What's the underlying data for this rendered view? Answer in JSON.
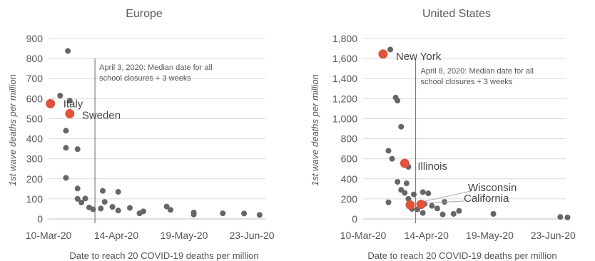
{
  "chart_data": [
    {
      "type": "scatter",
      "title": "Europe",
      "xlabel": "Date to reach 20 COVID-19 deaths per million",
      "ylabel": "1st wave deaths per million",
      "x_ticks": [
        "10-Mar-20",
        "14-Apr-20",
        "19-May-20",
        "23-Jun-20"
      ],
      "y_ticks": [
        "0",
        "100",
        "200",
        "300",
        "400",
        "500",
        "600",
        "700",
        "800",
        "900"
      ],
      "xlim": [
        "2020-03-10",
        "2020-06-30"
      ],
      "ylim": [
        0,
        900
      ],
      "grid": "horizontal",
      "reference_line": {
        "x": "2020-04-03",
        "text": [
          "April 3, 2020: Median date for all",
          "school closures + 3 weeks"
        ]
      },
      "series": [
        {
          "color": "#666666",
          "points": [
            {
              "x": "2020-03-16",
              "y": 615
            },
            {
              "x": "2020-03-20",
              "y": 838
            },
            {
              "x": "2020-03-21",
              "y": 590
            },
            {
              "x": "2020-03-19",
              "y": 440
            },
            {
              "x": "2020-03-19",
              "y": 355
            },
            {
              "x": "2020-03-25",
              "y": 348
            },
            {
              "x": "2020-03-19",
              "y": 205
            },
            {
              "x": "2020-03-25",
              "y": 152
            },
            {
              "x": "2020-03-25",
              "y": 100
            },
            {
              "x": "2020-03-27",
              "y": 82
            },
            {
              "x": "2020-03-29",
              "y": 102
            },
            {
              "x": "2020-03-31",
              "y": 57
            },
            {
              "x": "2020-04-02",
              "y": 48
            },
            {
              "x": "2020-04-06",
              "y": 52
            },
            {
              "x": "2020-04-07",
              "y": 140
            },
            {
              "x": "2020-04-08",
              "y": 85
            },
            {
              "x": "2020-04-12",
              "y": 60
            },
            {
              "x": "2020-04-15",
              "y": 135
            },
            {
              "x": "2020-04-15",
              "y": 42
            },
            {
              "x": "2020-04-21",
              "y": 55
            },
            {
              "x": "2020-04-26",
              "y": 28
            },
            {
              "x": "2020-04-28",
              "y": 38
            },
            {
              "x": "2020-05-10",
              "y": 62
            },
            {
              "x": "2020-05-12",
              "y": 45
            },
            {
              "x": "2020-05-24",
              "y": 32
            },
            {
              "x": "2020-05-24",
              "y": 22
            },
            {
              "x": "2020-06-08",
              "y": 28
            },
            {
              "x": "2020-06-19",
              "y": 27
            },
            {
              "x": "2020-06-27",
              "y": 20
            }
          ]
        },
        {
          "color": "#e0533a",
          "points": [
            {
              "x": "2020-03-11",
              "y": 575,
              "label": "Italy"
            },
            {
              "x": "2020-03-21",
              "y": 525,
              "label": "Sweden"
            }
          ]
        }
      ]
    },
    {
      "type": "scatter",
      "title": "United States",
      "xlabel": "Date to reach 20 COVID-19 deaths per million",
      "ylabel": "1st wave deaths per million",
      "x_ticks": [
        "10-Mar-20",
        "14-Apr-20",
        "19-May-20",
        "23-Jun-20"
      ],
      "y_ticks": [
        "0",
        "200",
        "400",
        "600",
        "800",
        "1,000",
        "1,200",
        "1,400",
        "1,600",
        "1,800"
      ],
      "xlim": [
        "2020-03-10",
        "2020-06-30"
      ],
      "ylim": [
        0,
        1800
      ],
      "grid": "horizontal",
      "reference_line": {
        "x": "2020-04-08",
        "text": [
          "April 8, 2020: Median date for all",
          "school closures + 3 weeks"
        ]
      },
      "series": [
        {
          "color": "#666666",
          "points": [
            {
              "x": "2020-03-25",
              "y": 1690
            },
            {
              "x": "2020-03-28",
              "y": 1210
            },
            {
              "x": "2020-03-29",
              "y": 1180
            },
            {
              "x": "2020-03-31",
              "y": 920
            },
            {
              "x": "2020-03-24",
              "y": 680
            },
            {
              "x": "2020-03-26",
              "y": 600
            },
            {
              "x": "2020-04-04",
              "y": 520
            },
            {
              "x": "2020-03-29",
              "y": 370
            },
            {
              "x": "2020-04-03",
              "y": 355
            },
            {
              "x": "2020-03-31",
              "y": 290
            },
            {
              "x": "2020-04-02",
              "y": 260
            },
            {
              "x": "2020-04-07",
              "y": 245
            },
            {
              "x": "2020-04-12",
              "y": 268
            },
            {
              "x": "2020-04-15",
              "y": 255
            },
            {
              "x": "2020-04-24",
              "y": 170
            },
            {
              "x": "2020-03-24",
              "y": 165
            },
            {
              "x": "2020-04-04",
              "y": 200
            },
            {
              "x": "2020-04-13",
              "y": 150
            },
            {
              "x": "2020-04-17",
              "y": 130
            },
            {
              "x": "2020-04-20",
              "y": 105
            },
            {
              "x": "2020-04-06",
              "y": 100
            },
            {
              "x": "2020-04-09",
              "y": 95
            },
            {
              "x": "2020-04-12",
              "y": 60
            },
            {
              "x": "2020-04-23",
              "y": 45
            },
            {
              "x": "2020-04-29",
              "y": 50
            },
            {
              "x": "2020-05-02",
              "y": 80
            },
            {
              "x": "2020-05-21",
              "y": 50
            },
            {
              "x": "2020-06-27",
              "y": 20
            },
            {
              "x": "2020-07-01",
              "y": 15
            }
          ]
        },
        {
          "color": "#e0533a",
          "points": [
            {
              "x": "2020-03-21",
              "y": 1645,
              "label": "New York"
            },
            {
              "x": "2020-04-02",
              "y": 555,
              "label": "Illinois"
            },
            {
              "x": "2020-04-05",
              "y": 140,
              "label": "Wisconsin"
            },
            {
              "x": "2020-04-11",
              "y": 145,
              "label": "California"
            }
          ]
        }
      ]
    }
  ]
}
